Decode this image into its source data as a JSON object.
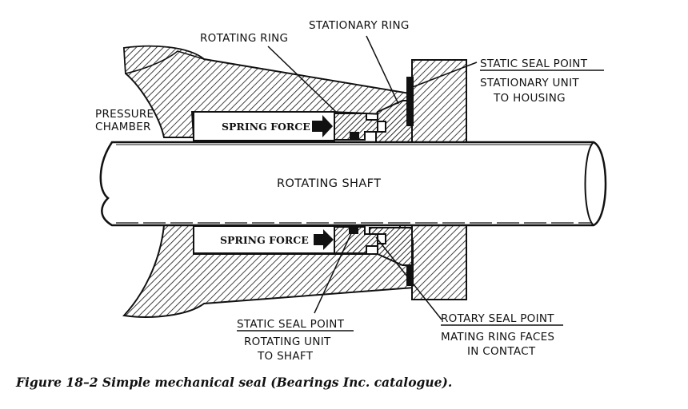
{
  "labels": {
    "rotating_ring": "ROTATING RING",
    "stationary_ring": "STATIONARY RING",
    "static_seal_point_top": "STATIC SEAL POINT",
    "stationary_unit_line1": "STATIONARY UNIT",
    "stationary_unit_line2": "TO HOUSING",
    "pressure_chamber_line1": "PRESSURE",
    "pressure_chamber_line2": "CHAMBER",
    "spring_force_top": "SPRING FORCE",
    "rotating_shaft": "ROTATING SHAFT",
    "spring_force_bottom": "SPRING FORCE",
    "static_seal_point_bottom": "STATIC SEAL POINT",
    "rotating_unit_line1": "ROTATING UNIT",
    "rotating_unit_line2": "TO SHAFT",
    "rotary_seal_point": "ROTARY SEAL POINT",
    "mating_faces_line1": "MATING RING FACES",
    "mating_faces_line2": "IN CONTACT"
  },
  "caption": "Figure 18–2  Simple mechanical seal (Bearings Inc. catalogue).",
  "colors": {
    "ink": "#111111",
    "paper": "#ffffff"
  }
}
